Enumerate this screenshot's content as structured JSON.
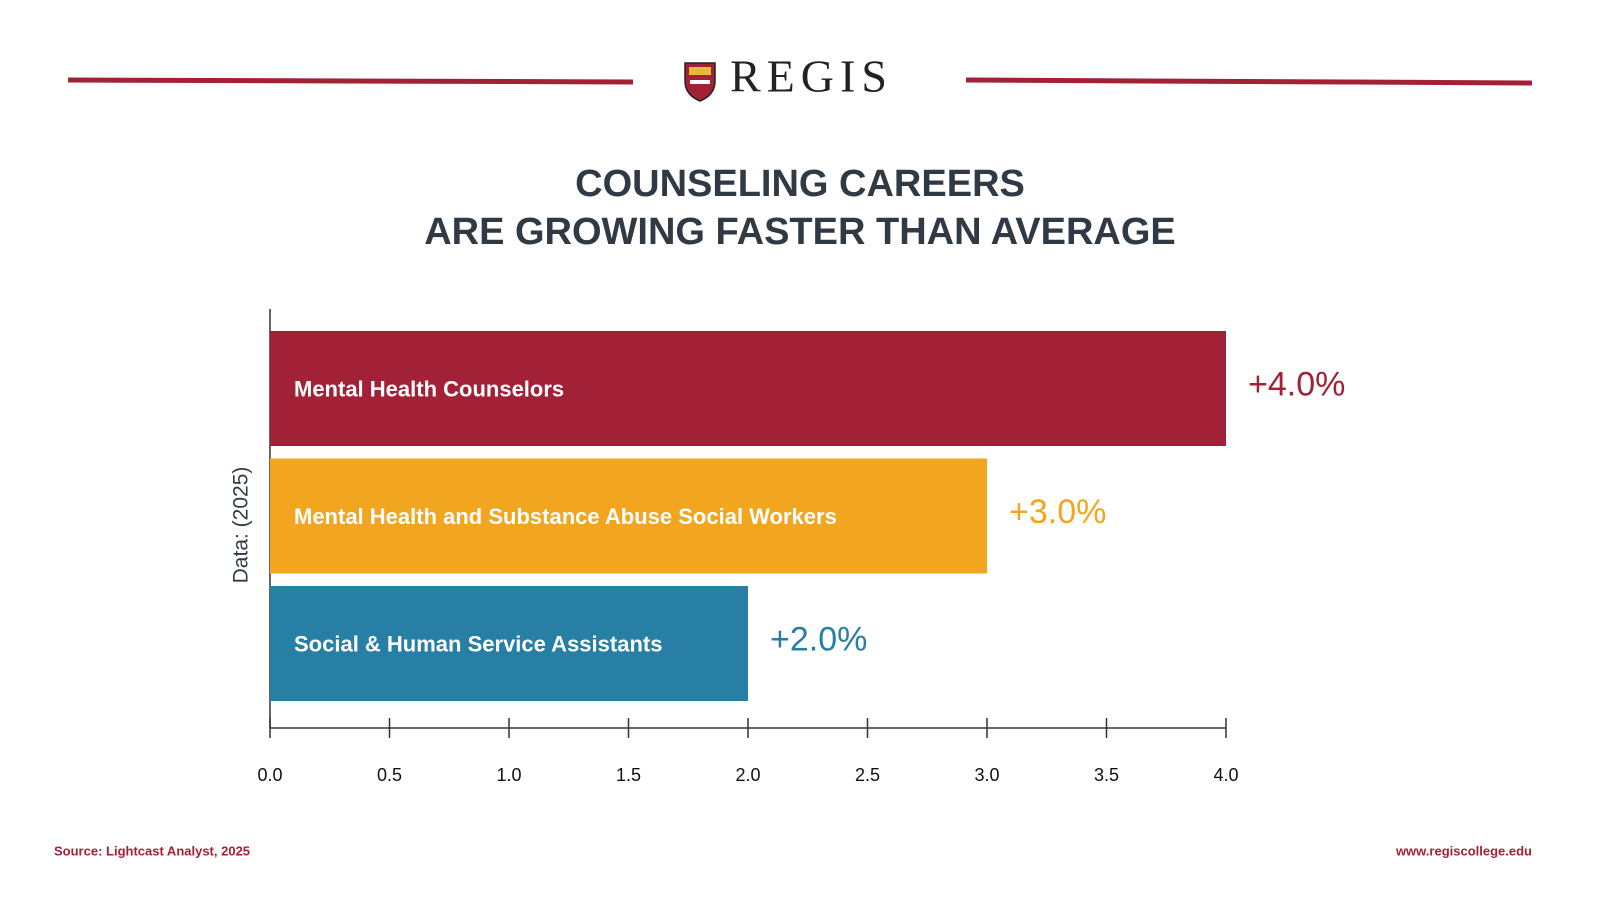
{
  "header": {
    "logo": "REGIS"
  },
  "chart_data": {
    "type": "barh",
    "title": [
      "COUNSELING CAREERS",
      "ARE GROWING FASTER THAN AVERAGE"
    ],
    "ylabel": "Data: (2025)",
    "categories": [
      "Mental Health Counselors",
      "Mental Health and Substance Abuse Social Workers",
      "Social & Human Service Assistants"
    ],
    "values": [
      4.0,
      3.0,
      2.0
    ],
    "value_labels": [
      "+4.0%",
      "+3.0%",
      "+2.0%"
    ],
    "colors": [
      "#a32136",
      "#f2a51f",
      "#287fa6"
    ],
    "xlim": [
      0,
      4.0
    ],
    "xticks": [
      {
        "value": 0,
        "label": "0.0"
      },
      0.5,
      {
        "value": 1,
        "label": "1.0"
      },
      1.5,
      {
        "value": 2,
        "label": "2.0"
      },
      2.5,
      {
        "value": 3,
        "label": "3.0"
      },
      3.5,
      {
        "value": 4,
        "label": "4.0"
      }
    ],
    "grid": false
  },
  "footer": {
    "source": "Source: Lightcast Analyst, 2025",
    "website": "www.regiscollege.edu"
  }
}
